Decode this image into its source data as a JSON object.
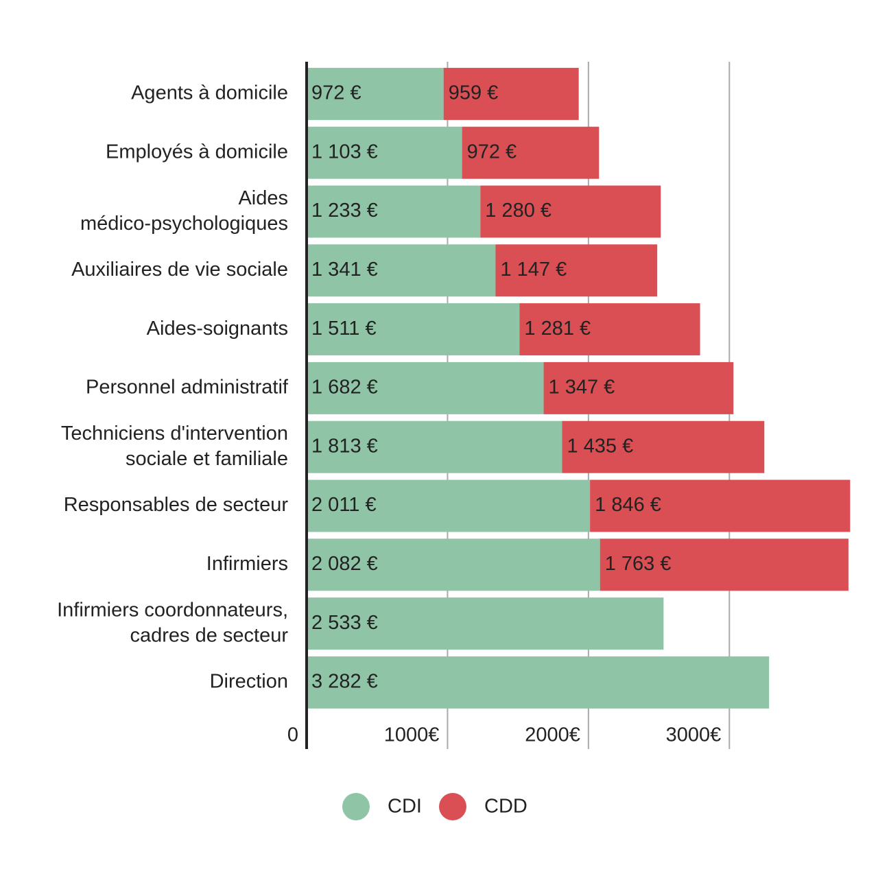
{
  "chart_data": {
    "type": "stacked-barh",
    "categories": [
      "Agents à domicile",
      "Employés à domicile",
      "Aides\nmédico-psychologiques",
      "Auxiliaires de vie sociale",
      "Aides-soignants",
      "Personnel administratif",
      "Techniciens d'intervention\nsociale et familiale",
      "Responsables de secteur",
      "Infirmiers",
      "Infirmiers coordonnateurs,\ncadres de secteur",
      "Direction"
    ],
    "series": [
      {
        "name": "CDI",
        "color": "#8fc4a6",
        "values": [
          972,
          1103,
          1233,
          1341,
          1511,
          1682,
          1813,
          2011,
          2082,
          2533,
          3282
        ],
        "value_labels": [
          "972 €",
          "1 103 €",
          "1 233 €",
          "1 341 €",
          "1 511 €",
          "1 682 €",
          "1 813 €",
          "2 011 €",
          "2 082 €",
          "2 533 €",
          "3 282 €"
        ]
      },
      {
        "name": "CDD",
        "color": "#d94f54",
        "values": [
          959,
          972,
          1280,
          1147,
          1281,
          1347,
          1435,
          1846,
          1763,
          null,
          null
        ],
        "value_labels": [
          "959 €",
          "972 €",
          "1 280 €",
          "1 147 €",
          "1 281 €",
          "1 347 €",
          "1 435 €",
          "1 846 €",
          "1 763 €",
          null,
          null
        ]
      }
    ],
    "xlim": [
      0,
      3860
    ],
    "xticks": [
      0,
      {
        "value": 1000,
        "label": "1000€"
      },
      {
        "value": 2000,
        "label": "2000€"
      },
      {
        "value": 3000,
        "label": "3000€"
      }
    ],
    "grid": true,
    "legend": "bottom"
  }
}
